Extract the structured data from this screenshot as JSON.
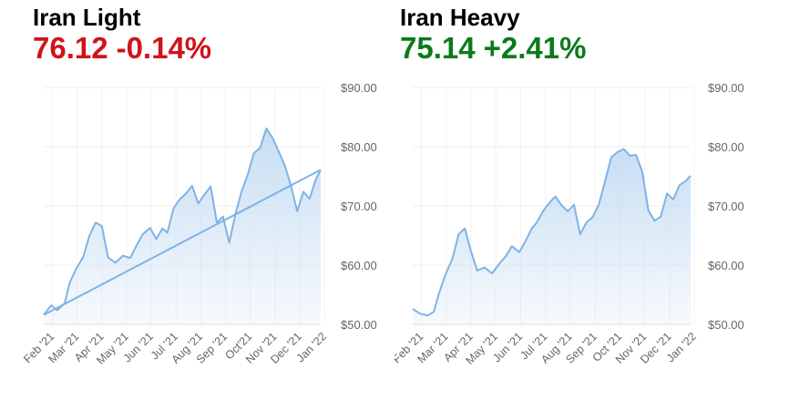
{
  "charts": [
    {
      "name": "Iran Light",
      "price": "76.12",
      "change": "-0.14%",
      "change_color": "#d0131a",
      "line_color": "#7fb3e6",
      "fill_color": "#c5dcf3",
      "chart_data": {
        "type": "area",
        "title": "Iran Light",
        "x_labels": [
          "Feb '21",
          "Mar '21",
          "Apr '21",
          "May '21",
          "Jun '21",
          "Jul '21",
          "Aug '21",
          "Sep '21",
          "Oct'21",
          "Nov '21",
          "Dec '21",
          "Jan '22"
        ],
        "y_ticks": [
          "$50.00",
          "$60.00",
          "$70.00",
          "$80.00",
          "$90.00"
        ],
        "ylim": [
          50,
          90
        ],
        "grid": true,
        "series_points": [
          [
            0,
            51.6
          ],
          [
            0.3,
            53.2
          ],
          [
            0.55,
            52.4
          ],
          [
            0.85,
            53.6
          ],
          [
            1.05,
            57
          ],
          [
            1.3,
            59.3
          ],
          [
            1.6,
            61.4
          ],
          [
            1.85,
            65
          ],
          [
            2.1,
            67.2
          ],
          [
            2.35,
            66.6
          ],
          [
            2.6,
            61.3
          ],
          [
            2.9,
            60.4
          ],
          [
            3.2,
            61.6
          ],
          [
            3.5,
            61.2
          ],
          [
            3.75,
            63.3
          ],
          [
            4.0,
            65.2
          ],
          [
            4.3,
            66.3
          ],
          [
            4.55,
            64.4
          ],
          [
            4.8,
            66.2
          ],
          [
            5.0,
            65.5
          ],
          [
            5.25,
            69.6
          ],
          [
            5.5,
            71.1
          ],
          [
            5.75,
            72.1
          ],
          [
            6.0,
            73.4
          ],
          [
            6.25,
            70.4
          ],
          [
            6.5,
            71.9
          ],
          [
            6.75,
            73.3
          ],
          [
            7.0,
            67.2
          ],
          [
            7.25,
            68.2
          ],
          [
            7.5,
            63.8
          ],
          [
            7.75,
            68.6
          ],
          [
            8.0,
            72.4
          ],
          [
            8.25,
            75.3
          ],
          [
            8.5,
            78.9
          ],
          [
            8.75,
            79.8
          ],
          [
            9.0,
            83.1
          ],
          [
            9.25,
            81.5
          ],
          [
            9.5,
            79.2
          ],
          [
            9.75,
            76.8
          ],
          [
            10.0,
            73.4
          ],
          [
            10.25,
            69.1
          ],
          [
            10.5,
            72.4
          ],
          [
            10.75,
            71.2
          ],
          [
            11.0,
            74.5
          ],
          [
            11.2,
            76.1
          ]
        ],
        "trendline": [
          [
            0,
            51.6
          ],
          [
            11.2,
            76.1
          ]
        ]
      }
    },
    {
      "name": "Iran Heavy",
      "price": "75.14",
      "change": "+2.41%",
      "change_color": "#0c7a1b",
      "line_color": "#7fb3e6",
      "fill_color": "#c5dcf3",
      "chart_data": {
        "type": "area",
        "title": "Iran Heavy",
        "x_labels": [
          "Feb '21",
          "Mar '21",
          "Apr '21",
          "May '21",
          "Jun '21",
          "Jul '21",
          "Aug '21",
          "Sep '21",
          "Oct '21",
          "Nov '21",
          "Dec '21",
          "Jan '22"
        ],
        "y_ticks": [
          "$50.00",
          "$60.00",
          "$70.00",
          "$80.00",
          "$90.00"
        ],
        "ylim": [
          50,
          90
        ],
        "grid": true,
        "series_points": [
          [
            0,
            52.6
          ],
          [
            0.3,
            51.8
          ],
          [
            0.6,
            51.5
          ],
          [
            0.85,
            52.1
          ],
          [
            1.05,
            55.1
          ],
          [
            1.3,
            58.2
          ],
          [
            1.6,
            61.1
          ],
          [
            1.85,
            65.2
          ],
          [
            2.1,
            66.2
          ],
          [
            2.35,
            62.3
          ],
          [
            2.6,
            59.1
          ],
          [
            2.9,
            59.6
          ],
          [
            3.2,
            58.6
          ],
          [
            3.5,
            60.3
          ],
          [
            3.75,
            61.5
          ],
          [
            4.0,
            63.2
          ],
          [
            4.3,
            62.2
          ],
          [
            4.55,
            64.1
          ],
          [
            4.8,
            66.2
          ],
          [
            5.0,
            67.2
          ],
          [
            5.25,
            69.1
          ],
          [
            5.5,
            70.5
          ],
          [
            5.75,
            71.6
          ],
          [
            6.0,
            70.1
          ],
          [
            6.25,
            69.1
          ],
          [
            6.5,
            70.2
          ],
          [
            6.75,
            65.2
          ],
          [
            7.0,
            67.2
          ],
          [
            7.25,
            68.1
          ],
          [
            7.5,
            70.2
          ],
          [
            7.75,
            74.1
          ],
          [
            8.0,
            78.2
          ],
          [
            8.25,
            79.1
          ],
          [
            8.5,
            79.6
          ],
          [
            8.75,
            78.5
          ],
          [
            9.0,
            78.6
          ],
          [
            9.25,
            75.8
          ],
          [
            9.5,
            69.2
          ],
          [
            9.75,
            67.5
          ],
          [
            10.0,
            68.2
          ],
          [
            10.25,
            72.1
          ],
          [
            10.5,
            71.1
          ],
          [
            10.75,
            73.5
          ],
          [
            11.0,
            74.2
          ],
          [
            11.2,
            75.1
          ]
        ]
      }
    }
  ]
}
